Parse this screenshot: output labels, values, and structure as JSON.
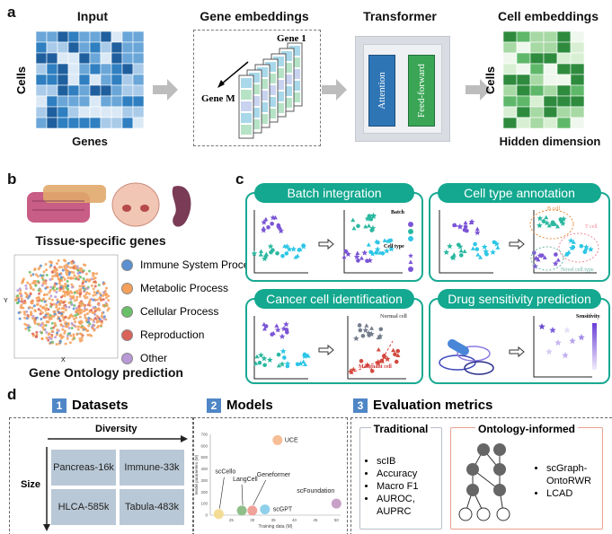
{
  "panel_a": {
    "label": "a",
    "input_title": "Input",
    "input_row_label": "Cells",
    "input_col_label": "Genes",
    "gene_emb_title": "Gene embeddings",
    "gene_1": "Gene 1",
    "gene_m": "Gene M",
    "transformer_title": "Transformer",
    "attention": "Attention",
    "feed_forward": "Feed-forward",
    "cell_emb_title": "Cell embeddings",
    "cell_row_label": "Cells",
    "cell_col_label": "Hidden dimension",
    "colors": {
      "input": "#2f7fc1",
      "cells": "#3aa655",
      "attention": "#2e75b6",
      "feed_forward": "#3aa655"
    }
  },
  "panel_b": {
    "label": "b",
    "tissue_title": "Tissue-specific genes",
    "go_title": "Gene Ontology prediction",
    "axis_x": "X",
    "axis_y": "Y",
    "legend": [
      {
        "name": "Immune System Process",
        "color": "#5b8fd0"
      },
      {
        "name": "Metabolic Process",
        "color": "#f5a05a"
      },
      {
        "name": "Cellular Process",
        "color": "#6abf69"
      },
      {
        "name": "Reproduction",
        "color": "#d9625a"
      },
      {
        "name": "Other",
        "color": "#b79ad6"
      }
    ]
  },
  "panel_c": {
    "label": "c",
    "tasks": [
      {
        "title": "Batch integration",
        "notes": [
          "Batch",
          "Cell type"
        ]
      },
      {
        "title": "Cell type annotation",
        "notes": [
          "B cell",
          "T cell",
          "Novel cell type"
        ]
      },
      {
        "title": "Cancer cell identification",
        "notes": [
          "Normal cell",
          "Malignant cell"
        ]
      },
      {
        "title": "Drug sensitivity prediction",
        "notes": [
          "Sensitivity"
        ]
      }
    ],
    "accent": "#13a88f"
  },
  "panel_d": {
    "label": "d",
    "datasets": {
      "num": "1",
      "title": "Datasets",
      "diversity": "Diversity",
      "size": "Size",
      "items": [
        "Pancreas-16k",
        "Immune-33k",
        "HLCA-585k",
        "Tabula-483k"
      ]
    },
    "models": {
      "num": "2",
      "title": "Models"
    },
    "evaluation": {
      "num": "3",
      "title": "Evaluation metrics",
      "traditional": {
        "title": "Traditional",
        "items": [
          "scIB",
          "Accuracy",
          "Macro F1",
          "AUROC, AUPRC"
        ]
      },
      "ontology": {
        "title": "Ontology-informed",
        "items": [
          "scGraph-OntoRWR",
          "LCAD"
        ]
      }
    }
  },
  "chart_data": {
    "type": "scatter",
    "xlabel": "Training data (M)",
    "ylabel": "Model parameters (M)",
    "xlim": [
      20,
      51
    ],
    "ylim": [
      0,
      700
    ],
    "xticks": [
      25,
      30,
      35,
      40,
      45,
      50
    ],
    "yticks": [
      0,
      100,
      200,
      300,
      400,
      500,
      600,
      700
    ],
    "points": [
      {
        "name": "scCello",
        "x": 22,
        "y": 10,
        "color": "#f3dc94"
      },
      {
        "name": "LangCell",
        "x": 27.5,
        "y": 40,
        "color": "#8fbf8a"
      },
      {
        "name": "Geneformer",
        "x": 30,
        "y": 40,
        "color": "#f0a19a"
      },
      {
        "name": "scGPT",
        "x": 33,
        "y": 50,
        "color": "#8fd0ea"
      },
      {
        "name": "UCE",
        "x": 36,
        "y": 650,
        "color": "#f6bd96"
      },
      {
        "name": "scFoundation",
        "x": 50,
        "y": 100,
        "color": "#c8a0c8"
      }
    ]
  }
}
